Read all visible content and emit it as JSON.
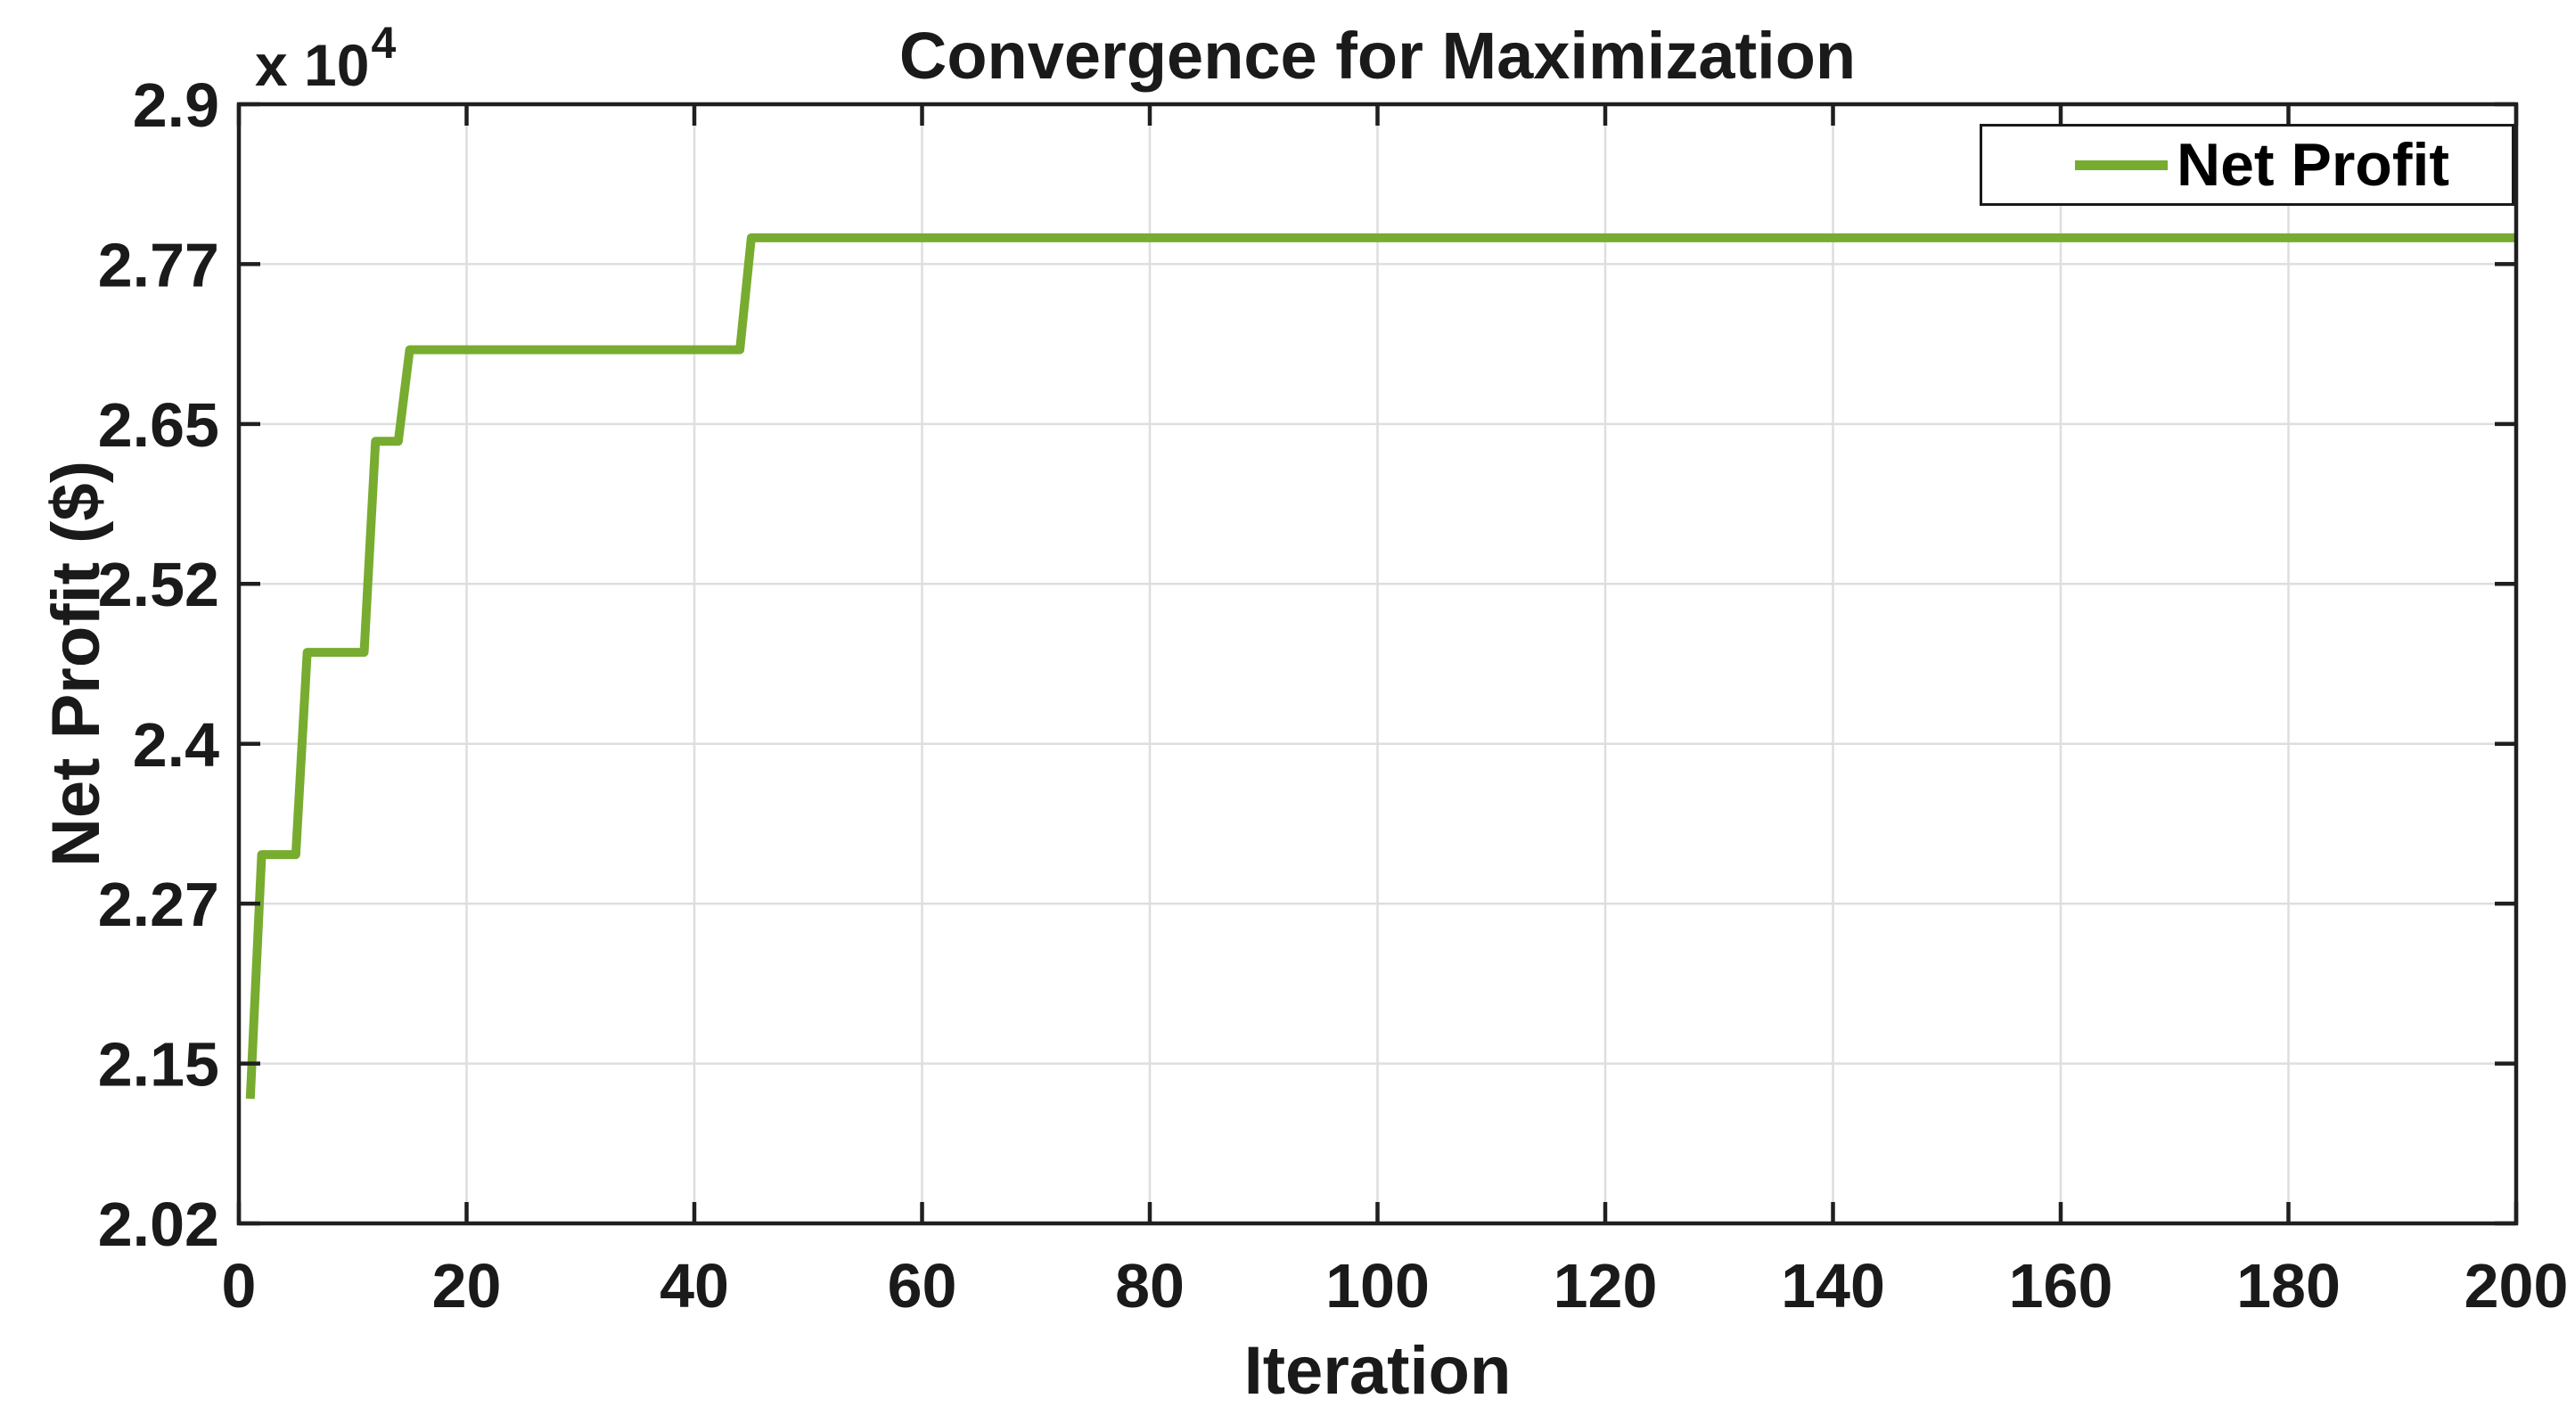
{
  "figure": {
    "title": "Convergence for Maximization",
    "x_label": "Iteration",
    "y_label": "Net Profit ($)",
    "y_exponent_prefix": "x 10",
    "y_exponent_power": "4",
    "legend_label": "Net Profit"
  },
  "colors": {
    "line": "#77AC30",
    "grid": "#DEDEDE",
    "axis": "#1F1F1F",
    "tick_text": "#1A1A1A",
    "background": "#FFFFFF",
    "legend_border": "#1A1A1A"
  },
  "chart_data": {
    "type": "line",
    "title": "Convergence for Maximization",
    "xlabel": "Iteration",
    "ylabel": "Net Profit ($)",
    "y_axis_multiplier": "x 10^4",
    "legend": [
      "Net Profit"
    ],
    "legend_position": "top-right",
    "grid": true,
    "xlim": [
      0,
      200
    ],
    "ylim": [
      20200,
      29000
    ],
    "x_ticks": [
      0,
      20,
      40,
      60,
      80,
      100,
      120,
      140,
      160,
      180,
      200
    ],
    "y_tick_values": [
      20200,
      21457,
      22714,
      23971,
      25229,
      26486,
      27743,
      29000
    ],
    "y_tick_labels": [
      "2.02",
      "2.15",
      "2.27",
      "2.4",
      "2.52",
      "2.65",
      "2.77",
      "2.9"
    ],
    "series": [
      {
        "name": "Net Profit",
        "color": "#77AC30",
        "line_width": 10,
        "x": [
          1,
          2,
          5,
          6,
          11,
          12,
          14,
          15,
          44,
          45,
          200
        ],
        "y": [
          21180,
          23100,
          23100,
          24690,
          24690,
          26350,
          26350,
          27070,
          27070,
          27950,
          27950
        ]
      }
    ]
  }
}
